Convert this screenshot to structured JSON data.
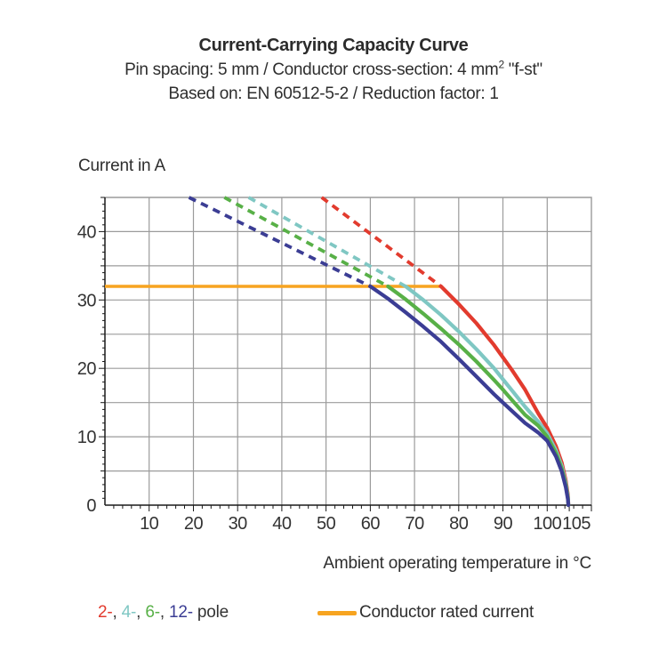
{
  "header": {
    "title": "Current-Carrying Capacity Curve",
    "subtitle_pre": "Pin spacing: 5 mm / Conductor cross-section: 4 mm",
    "subtitle_sup": "2",
    "subtitle_post": " \"f-st\"",
    "basis": "Based on: EN 60512-5-2 / Reduction factor: 1"
  },
  "chart_data": {
    "type": "line",
    "title": "Current-Carrying Capacity Curve",
    "xlabel": "Ambient operating temperature in °C",
    "ylabel": "Current in A",
    "xlim": [
      0,
      110
    ],
    "ylim": [
      0,
      45
    ],
    "grid": true,
    "x_gridline_step": 10,
    "y_gridline_step": 5,
    "x_minor_tick_step": 2,
    "y_minor_tick_step": 1,
    "x_tick_labels": [
      10,
      20,
      30,
      40,
      50,
      60,
      70,
      80,
      90,
      100,
      105
    ],
    "y_tick_labels": [
      0,
      10,
      20,
      30,
      40
    ],
    "rated_current": {
      "label": "Conductor rated current",
      "value_amps": 32,
      "x_start": 0,
      "x_end": 76,
      "color": "#f7a420"
    },
    "temperature_limit_c": 104.8,
    "series": [
      {
        "name": "2-pole",
        "color": "#e23b2e",
        "dashed_segment": [
          [
            49,
            45
          ],
          [
            76,
            32
          ]
        ],
        "points": [
          [
            76,
            32
          ],
          [
            80,
            29.4
          ],
          [
            84,
            26.6
          ],
          [
            88,
            23.4
          ],
          [
            90,
            21.6
          ],
          [
            92,
            19.8
          ],
          [
            95,
            16.9
          ],
          [
            98,
            13.4
          ],
          [
            100,
            11.3
          ],
          [
            102,
            8.6
          ],
          [
            103.3,
            6.2
          ],
          [
            104.2,
            3.6
          ],
          [
            104.7,
            1.5
          ],
          [
            104.8,
            0
          ]
        ]
      },
      {
        "name": "4-pole",
        "color": "#7fc7c3",
        "dashed_segment": [
          [
            32.5,
            45
          ],
          [
            68,
            32
          ]
        ],
        "points": [
          [
            68,
            32
          ],
          [
            72,
            30
          ],
          [
            76,
            27.8
          ],
          [
            80,
            25.4
          ],
          [
            84,
            22.8
          ],
          [
            88,
            20
          ],
          [
            90,
            18.4
          ],
          [
            92,
            16.8
          ],
          [
            95,
            14.4
          ],
          [
            98,
            12.2
          ],
          [
            100,
            10.5
          ],
          [
            102,
            8.0
          ],
          [
            103.3,
            5.7
          ],
          [
            104.2,
            3.2
          ],
          [
            104.7,
            1.2
          ],
          [
            104.8,
            0
          ]
        ]
      },
      {
        "name": "6-pole",
        "color": "#58b047",
        "dashed_segment": [
          [
            27,
            45
          ],
          [
            64,
            32
          ]
        ],
        "points": [
          [
            64,
            32
          ],
          [
            68,
            30.1
          ],
          [
            72,
            28
          ],
          [
            76,
            25.8
          ],
          [
            80,
            23.5
          ],
          [
            84,
            21
          ],
          [
            88,
            18.3
          ],
          [
            90,
            16.9
          ],
          [
            92,
            15.4
          ],
          [
            95,
            13.2
          ],
          [
            98,
            11.6
          ],
          [
            100,
            10.0
          ],
          [
            102,
            7.6
          ],
          [
            103.3,
            5.3
          ],
          [
            104.2,
            2.9
          ],
          [
            104.7,
            1.0
          ],
          [
            104.8,
            0
          ]
        ]
      },
      {
        "name": "12-pole",
        "color": "#3b3d94",
        "dashed_segment": [
          [
            19,
            45
          ],
          [
            60,
            32
          ]
        ],
        "points": [
          [
            60,
            32
          ],
          [
            64,
            30.2
          ],
          [
            68,
            28.2
          ],
          [
            72,
            26.1
          ],
          [
            76,
            23.9
          ],
          [
            80,
            21.4
          ],
          [
            84,
            18.8
          ],
          [
            88,
            16.2
          ],
          [
            90,
            15.0
          ],
          [
            92,
            13.8
          ],
          [
            95,
            12.0
          ],
          [
            98,
            10.6
          ],
          [
            100,
            9.4
          ],
          [
            102,
            7.1
          ],
          [
            103.3,
            4.9
          ],
          [
            104.2,
            2.6
          ],
          [
            104.7,
            0.8
          ],
          [
            104.8,
            0
          ]
        ]
      }
    ],
    "style": {
      "grid_color": "#9b9b9b",
      "frame_color": "#9b9b9b",
      "axis_color": "#1a1a1a",
      "tick_label_color": "#333333"
    }
  },
  "legend": {
    "pole_items": [
      {
        "label": "2-",
        "color": "#e23b2e"
      },
      {
        "label": "4-",
        "color": "#7fc7c3"
      },
      {
        "label": "6-",
        "color": "#58b047"
      },
      {
        "label": "12-",
        "color": "#3b3d94"
      }
    ],
    "separator": ", ",
    "pole_word": "pole",
    "rated_label": "Conductor rated current",
    "rated_color": "#f7a420"
  }
}
